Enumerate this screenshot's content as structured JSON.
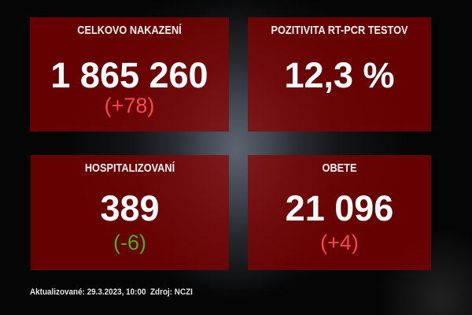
{
  "colors": {
    "box": "#8c0000",
    "increase": "#ff4646",
    "decrease": "#4caf1e"
  },
  "tiles": [
    {
      "label": "CELKOVO NAKAZENÍ",
      "value": "1 865 260",
      "delta": "(+78)"
    },
    {
      "label": "POZITIVITA RT-PCR TESTOV",
      "value": "12,3 %"
    },
    {
      "label": "HOSPITALIZOVANÍ",
      "value": "389",
      "delta": "(-6)"
    },
    {
      "label": "OBETE",
      "value": "21 096",
      "delta": "(+4)"
    }
  ],
  "footer": {
    "updated": "Aktualizované: 29.3.2023, 10:00",
    "source": "Zdroj: NCZI"
  }
}
